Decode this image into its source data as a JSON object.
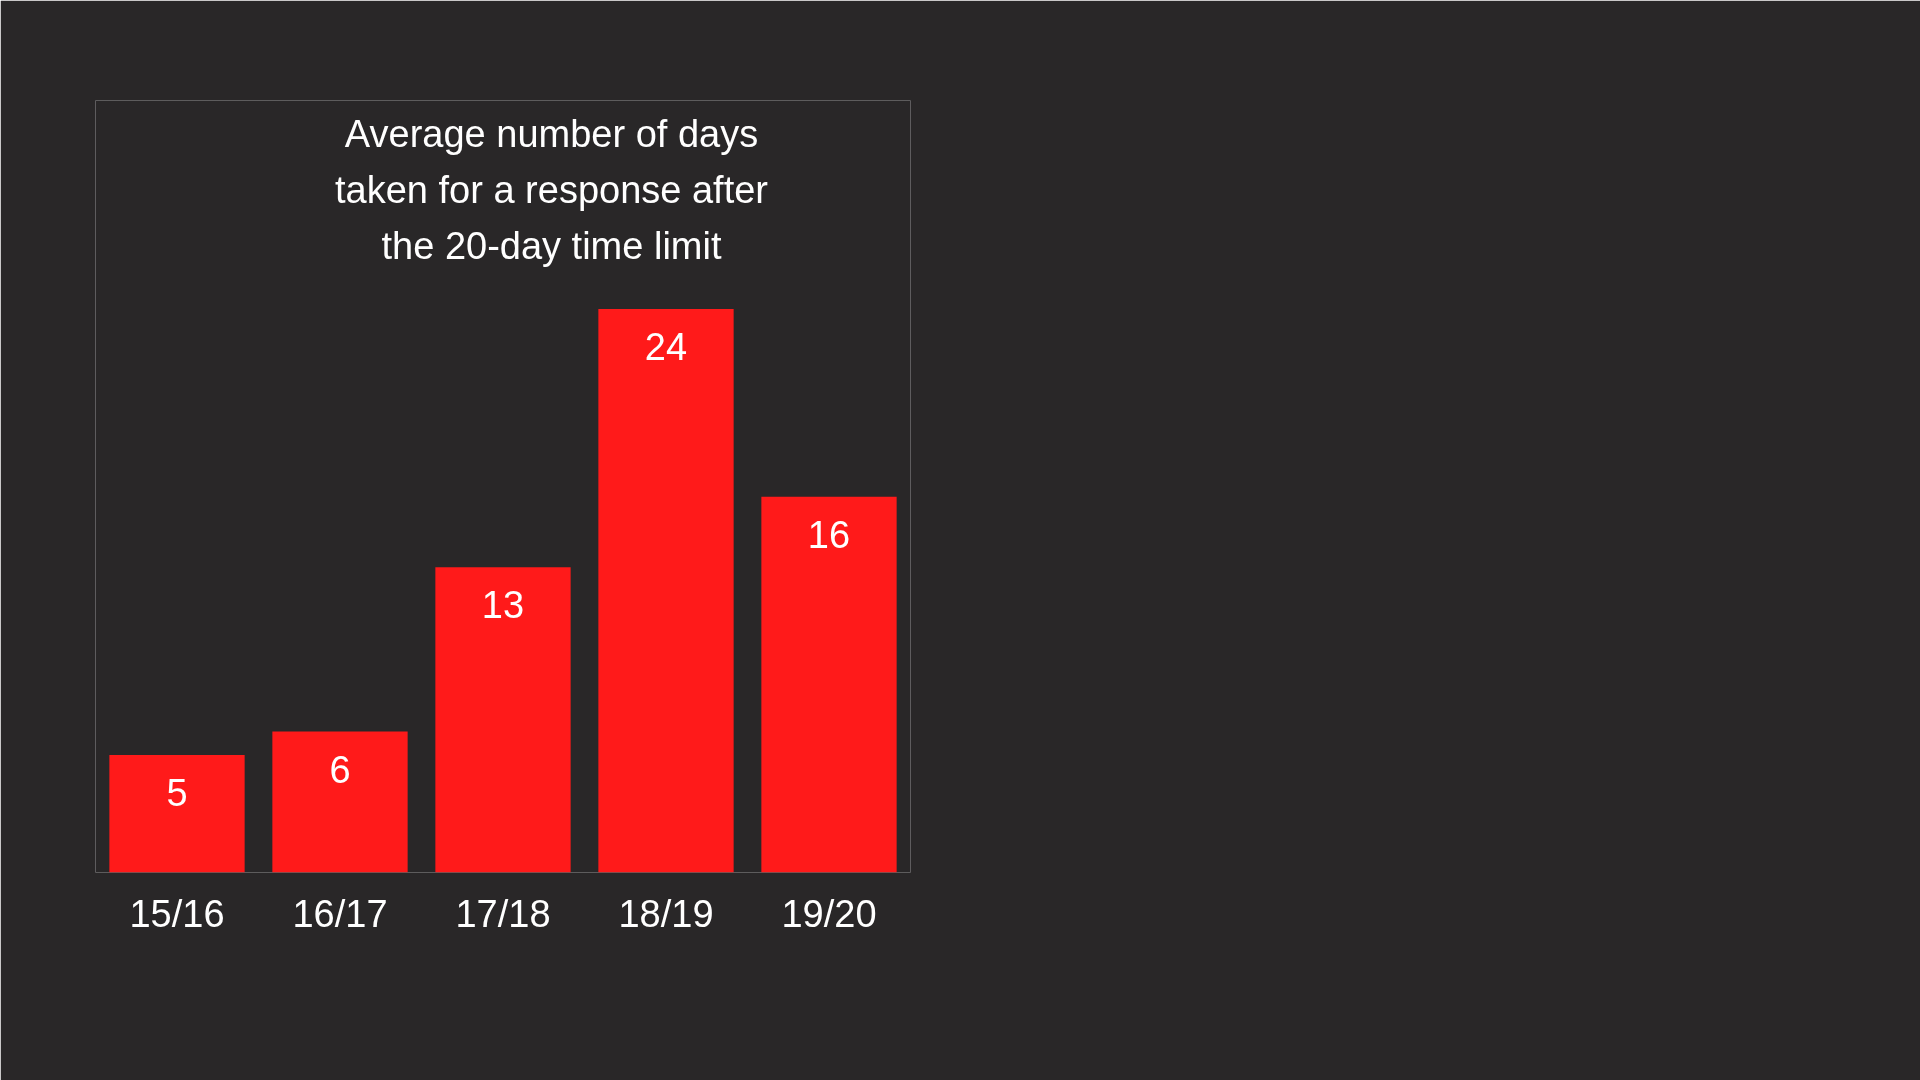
{
  "chart_data": {
    "type": "bar",
    "title": "Average number of days taken for a response after the 20-day time limit",
    "categories": [
      "15/16",
      "16/17",
      "17/18",
      "18/19",
      "19/20"
    ],
    "values": [
      5,
      6,
      13,
      24,
      16
    ],
    "color": "#ff1a1a",
    "data_labels": true
  }
}
